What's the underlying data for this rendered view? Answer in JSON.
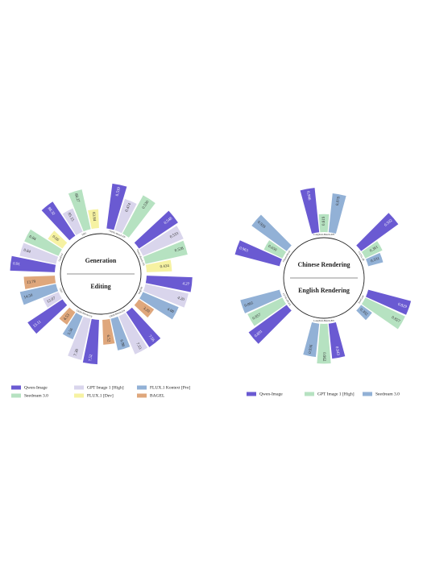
{
  "chart_data": [
    {
      "type": "radial-bar",
      "series": [
        {
          "name": "Qwen-Image",
          "color": "#6a5ad2"
        },
        {
          "name": "GPT Image 1 [High]",
          "color": "#d9d5ec"
        },
        {
          "name": "FLUX.1 Kontext [Pro]",
          "color": "#92b1d6"
        },
        {
          "name": "Seedream 3.0",
          "color": "#b6e2c1"
        },
        {
          "name": "FLUX.1 [Dev]",
          "color": "#f6f2a2"
        },
        {
          "name": "BAGEL",
          "color": "#dfa77c"
        }
      ],
      "halves": [
        {
          "title": "Generation",
          "groups": [
            {
              "name": "GenEval",
              "values": [
                0.91,
                0.84,
                null,
                0.84,
                0.66,
                null
              ],
              "lim": [
                0.5,
                0.95
              ]
            },
            {
              "name": "DPG",
              "values": [
                88.32,
                85.15,
                null,
                88.27,
                83.84,
                null
              ],
              "lim": [
                80,
                90
              ]
            },
            {
              "name": "OneIG-Bench-EN",
              "values": [
                0.539,
                0.474,
                null,
                0.53,
                null,
                null
              ],
              "value_labels": [
                "0.539",
                "0.474",
                null,
                "0.530",
                null,
                null
              ],
              "lim": [
                0.3,
                0.56
              ]
            },
            {
              "name": "OneIG-Bench-ZH",
              "values": [
                0.548,
                0.533,
                null,
                0.528,
                0.434,
                null
              ],
              "lim": [
                0.3,
                0.56
              ]
            }
          ]
        },
        {
          "title": "Editing",
          "groups": [
            {
              "name": "ImgEdit",
              "values": [
                4.27,
                4.2,
                4.0,
                null,
                null,
                3.2
              ],
              "value_labels": [
                "4.27",
                "4.20",
                "4.00",
                null,
                null,
                "3.20"
              ],
              "lim": [
                2.5,
                4.4
              ]
            },
            {
              "name": "GEdit-Bench-EN",
              "values": [
                7.56,
                7.53,
                6.98,
                null,
                null,
                6.52
              ],
              "lim": [
                5,
                8
              ]
            },
            {
              "name": "GEdit-Bench-CN",
              "values": [
                7.52,
                7.3,
                5.56,
                null,
                null,
                4.53
              ],
              "value_labels": [
                "7.52",
                "7.30",
                "5.56",
                null,
                null,
                "4.53"
              ],
              "lim": [
                3,
                8
              ]
            },
            {
              "name": "GSO",
              "values": [
                15.11,
                12.07,
                14.5,
                null,
                null,
                13.79
              ],
              "value_labels": [
                "15.11",
                "12.07",
                "14.50",
                null,
                null,
                "13.79"
              ],
              "lim": [
                10,
                16
              ]
            }
          ]
        }
      ]
    },
    {
      "type": "radial-bar",
      "series": [
        {
          "name": "Qwen-Image",
          "color": "#6a5ad2"
        },
        {
          "name": "GPT Image 1 [High]",
          "color": "#b6e2c1"
        },
        {
          "name": "Seedream 3.0",
          "color": "#92b1d6"
        }
      ],
      "halves": [
        {
          "title": "Chinese Rendering",
          "groups": [
            {
              "name": "ChineseWord",
              "values": [
                0.963,
                0.65,
                0.928
              ],
              "value_labels": [
                "0.963",
                "0.650",
                "0.928"
              ],
              "lim": [
                0.4,
                1
              ]
            },
            {
              "name": "LongText-Bench-ZH",
              "values": [
                0.946,
                0.619,
                0.878
              ],
              "lim": [
                0.4,
                1
              ]
            },
            {
              "name": "CVTG-2K",
              "values": [
                0.592,
                0.361,
                0.331
              ],
              "lim": [
                0.2,
                0.62
              ]
            }
          ]
        },
        {
          "title": "English Rendering",
          "groups": [
            {
              "name": "TextCraft",
              "values": [
                0.829,
                0.827,
                0.392
              ],
              "lim": [
                0.2,
                0.9
              ]
            },
            {
              "name": "LongText-Bench-EN",
              "values": [
                0.943,
                0.962,
                0.936
              ],
              "lim": [
                0.8,
                1
              ]
            },
            {
              "name": "CVTG-2K-EN",
              "values": [
                0.891,
                0.857,
                0.865
              ],
              "lim": [
                0.7,
                0.9
              ]
            }
          ]
        }
      ]
    }
  ]
}
